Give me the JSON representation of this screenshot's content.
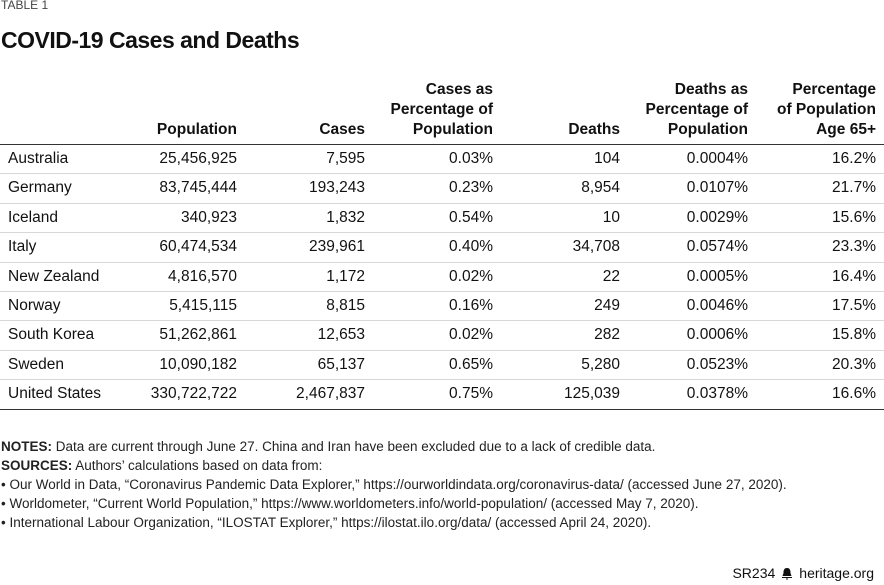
{
  "header": {
    "label": "TABLE 1",
    "title": "COVID-19 Cases and Deaths"
  },
  "table": {
    "columns": [
      [],
      [
        "Population"
      ],
      [
        "Cases"
      ],
      [
        "Cases as",
        "Percentage of",
        "Population"
      ],
      [
        "Deaths"
      ],
      [
        "Deaths as",
        "Percentage of",
        "Population"
      ],
      [
        "Percentage",
        "of Population",
        "Age 65+"
      ]
    ],
    "rows": [
      [
        "Australia",
        "25,456,925",
        "7,595",
        "0.03%",
        "104",
        "0.0004%",
        "16.2%"
      ],
      [
        "Germany",
        "83,745,444",
        "193,243",
        "0.23%",
        "8,954",
        "0.0107%",
        "21.7%"
      ],
      [
        "Iceland",
        "340,923",
        "1,832",
        "0.54%",
        "10",
        "0.0029%",
        "15.6%"
      ],
      [
        "Italy",
        "60,474,534",
        "239,961",
        "0.40%",
        "34,708",
        "0.0574%",
        "23.3%"
      ],
      [
        "New Zealand",
        "4,816,570",
        "1,172",
        "0.02%",
        "22",
        "0.0005%",
        "16.4%"
      ],
      [
        "Norway",
        "5,415,115",
        "8,815",
        "0.16%",
        "249",
        "0.0046%",
        "17.5%"
      ],
      [
        "South Korea",
        "51,262,861",
        "12,653",
        "0.02%",
        "282",
        "0.0006%",
        "15.8%"
      ],
      [
        "Sweden",
        "10,090,182",
        "65,137",
        "0.65%",
        "5,280",
        "0.0523%",
        "20.3%"
      ],
      [
        "United States",
        "330,722,722",
        "2,467,837",
        "0.75%",
        "125,039",
        "0.0378%",
        "16.6%"
      ]
    ]
  },
  "notes": {
    "label": "NOTES:",
    "text": "Data are current through June 27. China and Iran have been excluded due to a lack of credible data."
  },
  "sources": {
    "label": "SOURCES:",
    "text": "Authors’ calculations based on data from:",
    "items": [
      "Our World in Data, “Coronavirus Pandemic Data Explorer,” https://ourworldindata.org/coronavirus-data/ (accessed June 27, 2020).",
      "Worldometer, “Current World Population,” https://www.worldometers.info/world-population/ (accessed May 7, 2020).",
      "International Labour Organization, “ILOSTAT Explorer,” https://ilostat.ilo.org/data/ (accessed April 24, 2020)."
    ]
  },
  "footer": {
    "code": "SR234",
    "site": "heritage.org"
  }
}
